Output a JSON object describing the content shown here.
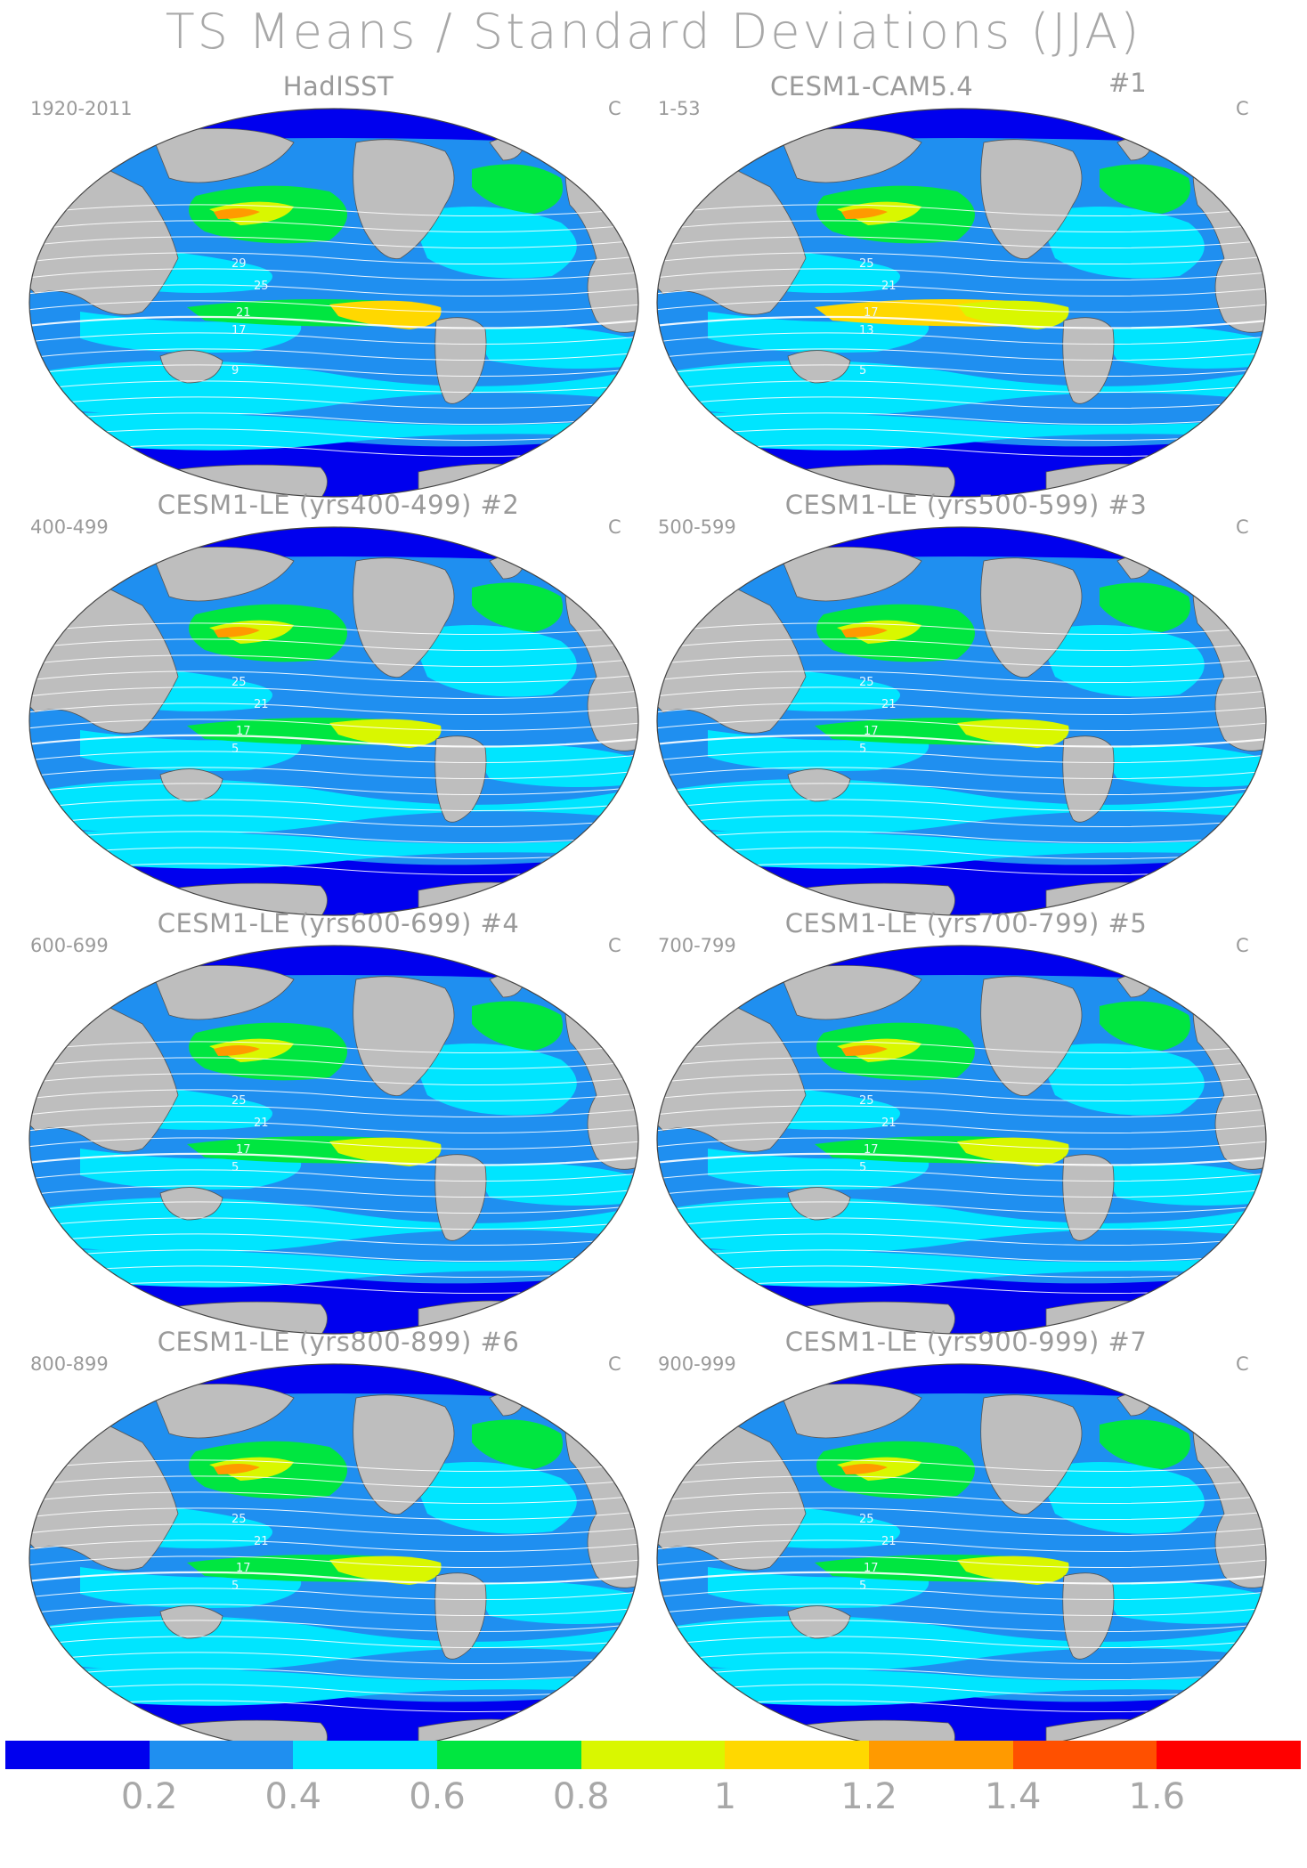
{
  "title": "TS Means / Standard Deviations (JJA)",
  "panels": [
    {
      "title": "HadISST",
      "number": "",
      "period": "1920-2011",
      "unit": "C",
      "contours": [
        "29",
        "25",
        "21",
        "17",
        "9"
      ]
    },
    {
      "title": "CESM1-CAM5.4",
      "number": "#1",
      "period": "1-53",
      "unit": "C",
      "contours": [
        "25",
        "21",
        "17",
        "13",
        "5"
      ]
    },
    {
      "title": "CESM1-LE (yrs400-499) #2",
      "number": "",
      "period": "400-499",
      "unit": "C",
      "contours": [
        "25",
        "21",
        "17",
        "5"
      ]
    },
    {
      "title": "CESM1-LE (yrs500-599) #3",
      "number": "",
      "period": "500-599",
      "unit": "C",
      "contours": [
        "25",
        "21",
        "17",
        "5"
      ]
    },
    {
      "title": "CESM1-LE (yrs600-699) #4",
      "number": "",
      "period": "600-699",
      "unit": "C",
      "contours": [
        "25",
        "21",
        "17",
        "5"
      ]
    },
    {
      "title": "CESM1-LE (yrs700-799) #5",
      "number": "",
      "period": "700-799",
      "unit": "C",
      "contours": [
        "25",
        "21",
        "17",
        "5"
      ]
    },
    {
      "title": "CESM1-LE (yrs800-899) #6",
      "number": "",
      "period": "800-899",
      "unit": "C",
      "contours": [
        "25",
        "21",
        "17",
        "5"
      ]
    },
    {
      "title": "CESM1-LE (yrs900-999) #7",
      "number": "",
      "period": "900-999",
      "unit": "C",
      "contours": [
        "25",
        "21",
        "17",
        "5"
      ]
    }
  ],
  "colorbar": {
    "labels": [
      "0.2",
      "0.4",
      "0.6",
      "0.8",
      "1",
      "1.2",
      "1.4",
      "1.6"
    ],
    "colors": [
      "#0000ee",
      "#1f8ff0",
      "#00e5ff",
      "#00e640",
      "#d9f700",
      "#ffd800",
      "#ff9a00",
      "#ff5000",
      "#ff0000"
    ]
  }
}
